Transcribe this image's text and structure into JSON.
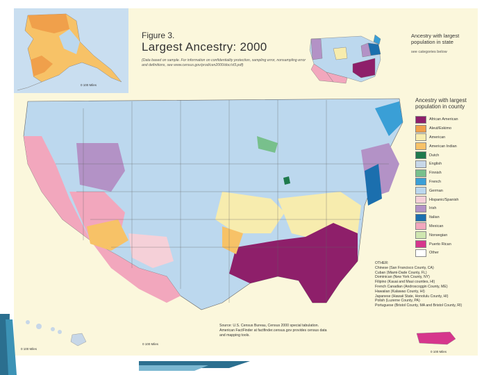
{
  "figure": {
    "number": "Figure 3.",
    "title": "Largest Ancestry: 2000",
    "note": "(Data based on sample. For information on confidentiality protection, sampling error, nonsampling error and definitions, see www.census.gov/prod/cen2000/doc/sf3.pdf)"
  },
  "inset": {
    "title": "Ancestry with largest population in state",
    "subtitle": "see categories below"
  },
  "legend": {
    "title": "Ancestry with largest population in county",
    "items": [
      {
        "label": "African American",
        "color": "#8e1f6a"
      },
      {
        "label": "Aleut/Eskimo",
        "color": "#f0a04b"
      },
      {
        "label": "American",
        "color": "#f7ecae"
      },
      {
        "label": "American Indian",
        "color": "#f7c267"
      },
      {
        "label": "Dutch",
        "color": "#1f7a4d"
      },
      {
        "label": "English",
        "color": "#c7d7e8"
      },
      {
        "label": "Finnish",
        "color": "#78c08c"
      },
      {
        "label": "French",
        "color": "#3a9fd6"
      },
      {
        "label": "German",
        "color": "#bcd8ee"
      },
      {
        "label": "Hispanic/Spanish",
        "color": "#f5d0d8"
      },
      {
        "label": "Irish",
        "color": "#b392c6"
      },
      {
        "label": "Italian",
        "color": "#1b6fae"
      },
      {
        "label": "Mexican",
        "color": "#f2a7bd"
      },
      {
        "label": "Norwegian",
        "color": "#cfe6b0"
      },
      {
        "label": "Puerto Rican",
        "color": "#d6368c"
      },
      {
        "label": "Other",
        "color": "#ffffff"
      }
    ]
  },
  "other": {
    "heading": "OTHER:",
    "lines": [
      "Chinese (San Francisco County, CA)",
      "Cuban (Miami-Dade County, FL)",
      "Dominican (New York County, NY)",
      "Filipino (Kauai and Maui counties, HI)",
      "French Canadian (Androscoggin County, ME)",
      "Hawaiian (Kalawao County, HI)",
      "Japanese (Hawaii State, Honolulu County, HI)",
      "Polish (Luzerne County, PA)",
      "Portuguese (Bristol County, MA and Bristol County, RI)"
    ]
  },
  "source": "Source: U.S. Census Bureau, Census 2000 special tabulation. American FactFinder at factfinder.census.gov provides census data and mapping tools.",
  "scales": {
    "alaska": "0    100 Miles",
    "hawaii": "0      100 Miles",
    "mainland": "0      100 Miles",
    "pr": "0      100 Miles"
  }
}
